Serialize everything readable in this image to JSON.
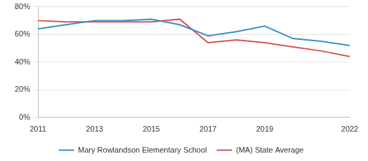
{
  "chart_data": {
    "type": "line",
    "categories": [
      "2011",
      null,
      "2013",
      null,
      "2015",
      null,
      "2017",
      null,
      "2019",
      null,
      null,
      "2022"
    ],
    "series": [
      {
        "name": "Mary Rowlandson Elementary School",
        "color": "#3a8dc6",
        "values": [
          64,
          67,
          70,
          70,
          71,
          67,
          59,
          62,
          66,
          57,
          55,
          52
        ]
      },
      {
        "name": "(MA) State Average",
        "color": "#d9534f",
        "values": [
          70,
          69,
          69,
          69,
          69,
          71,
          54,
          56,
          54,
          51,
          48,
          44
        ]
      }
    ],
    "ylim": [
      0,
      80
    ],
    "yticks": [
      {
        "value": 0,
        "label": "0%"
      },
      {
        "value": 20,
        "label": "20%"
      },
      {
        "value": 40,
        "label": "40%"
      },
      {
        "value": 60,
        "label": "60%"
      },
      {
        "value": 80,
        "label": "80%"
      }
    ],
    "grid": true,
    "legend": "bottom"
  }
}
